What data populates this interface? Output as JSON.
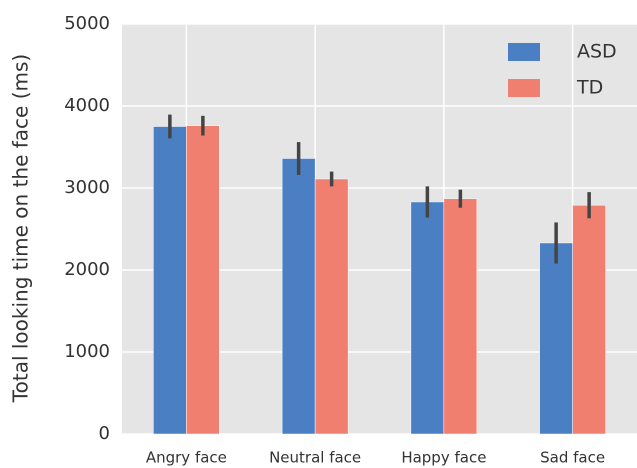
{
  "chart_data": {
    "type": "bar",
    "y_label": "Total looking time on the face (ms)",
    "categories": [
      "Angry face",
      "Neutral face",
      "Happy face",
      "Sad face"
    ],
    "series": [
      {
        "name": "ASD",
        "color": "#4a7fc4",
        "values": [
          3750,
          3360,
          2830,
          2330
        ],
        "errors": [
          145,
          200,
          190,
          250
        ]
      },
      {
        "name": "TD",
        "color": "#f07f70",
        "values": [
          3760,
          3110,
          2870,
          2790
        ],
        "errors": [
          120,
          90,
          110,
          160
        ]
      }
    ],
    "ylim": [
      0,
      5000
    ],
    "yticks": [
      0,
      1000,
      2000,
      3000,
      4000,
      5000
    ],
    "grid": true,
    "legend": "upper right"
  }
}
